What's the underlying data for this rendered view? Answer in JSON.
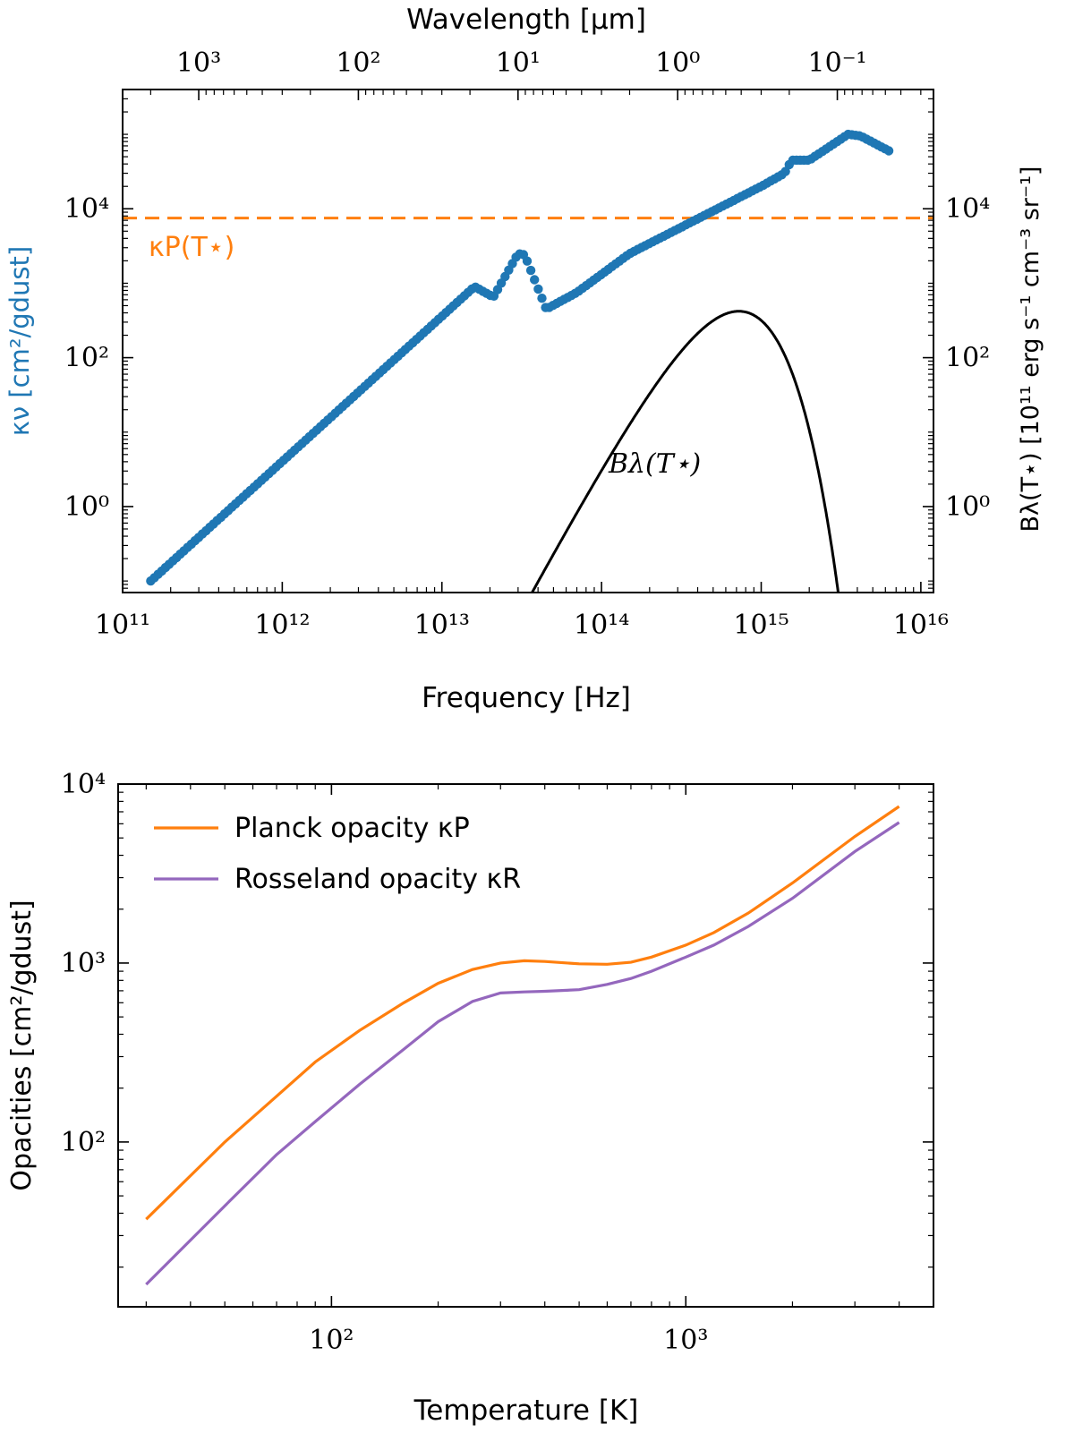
{
  "chart_data": [
    {
      "type": "scatter",
      "panel": "top",
      "title": "",
      "top_xlabel": "Wavelength [μm]",
      "xlabel": "Frequency [Hz]",
      "ylabel_left": "κν [cm²/gdust]",
      "ylabel_right": "Bλ(T⋆) [10¹¹ erg s⁻¹ cm⁻³ sr⁻¹]",
      "x_scale": "log",
      "y_scale": "log",
      "xlim": [
        100000000000.0,
        1.2e+16
      ],
      "ylim": [
        0.07,
        400000
      ],
      "grid": false,
      "x_ticks": [
        {
          "value": 100000000000.0,
          "label": "10¹¹"
        },
        {
          "value": 1000000000000.0,
          "label": "10¹²"
        },
        {
          "value": 10000000000000.0,
          "label": "10¹³"
        },
        {
          "value": 100000000000000.0,
          "label": "10¹⁴"
        },
        {
          "value": 1000000000000000.0,
          "label": "10¹⁵"
        },
        {
          "value": 1e+16,
          "label": "10¹⁶"
        }
      ],
      "y_ticks": [
        {
          "value": 1,
          "label": "10⁰"
        },
        {
          "value": 100,
          "label": "10²"
        },
        {
          "value": 10000,
          "label": "10⁴"
        }
      ],
      "top_ticks": [
        {
          "value": 1000,
          "label": "10³"
        },
        {
          "value": 100,
          "label": "10²"
        },
        {
          "value": 10,
          "label": "10¹"
        },
        {
          "value": 1,
          "label": "10⁰"
        },
        {
          "value": 0.1,
          "label": "10⁻¹"
        }
      ],
      "series": [
        {
          "name": "κν (dust opacity)",
          "color": "#1f77b4",
          "marker": "circle",
          "anchors": [
            [
              150000000000.0,
              0.1
            ],
            [
              16000000000000.0,
              900
            ],
            [
              21000000000000.0,
              650
            ],
            [
              30000000000000.0,
              2500
            ],
            [
              33000000000000.0,
              2400
            ],
            [
              45000000000000.0,
              450
            ],
            [
              70000000000000.0,
              750
            ],
            [
              150000000000000.0,
              2500
            ],
            [
              1000000000000000.0,
              20000
            ],
            [
              1400000000000000.0,
              30000
            ],
            [
              1550000000000000.0,
              45000
            ],
            [
              2000000000000000.0,
              45000
            ],
            [
              3500000000000000.0,
              100000
            ],
            [
              4200000000000000.0,
              95000
            ],
            [
              6300000000000000.0,
              60000
            ]
          ]
        },
        {
          "name": "Bλ(T⋆)",
          "color": "#000000",
          "style": "solid",
          "curve": {
            "type": "planck_lambda",
            "T_star": 7000,
            "peak_value": 420
          },
          "x_range": [
            100000000000.0,
            1.2e+16
          ]
        },
        {
          "name": "κP(T⋆)",
          "color": "#ff7f0e",
          "style": "dashed",
          "hline": 7500
        }
      ],
      "annotations": [
        {
          "text": "κP(T⋆)",
          "color": "#ff7f0e",
          "near": "left, just below the dashed line"
        },
        {
          "text": "Bλ(T⋆)",
          "color": "#000000",
          "near": "left of the Planck curve"
        }
      ]
    },
    {
      "type": "line",
      "panel": "bottom",
      "title": "",
      "xlabel": "Temperature [K]",
      "ylabel": "Opacities [cm²/gdust]",
      "x_scale": "log",
      "y_scale": "log",
      "xlim": [
        25,
        5000
      ],
      "ylim": [
        12,
        10000
      ],
      "grid": false,
      "legend_position": "top-left",
      "x_ticks": [
        {
          "value": 100,
          "label": "10²"
        },
        {
          "value": 1000,
          "label": "10³"
        }
      ],
      "y_ticks": [
        {
          "value": 100,
          "label": "10²"
        },
        {
          "value": 1000,
          "label": "10³"
        },
        {
          "value": 10000,
          "label": "10⁴"
        }
      ],
      "series": [
        {
          "name": "Planck opacity κP",
          "color": "#ff7f0e",
          "x": [
            30,
            50,
            70,
            90,
            120,
            160,
            200,
            250,
            300,
            350,
            400,
            500,
            600,
            700,
            800,
            1000,
            1200,
            1500,
            2000,
            3000,
            4000
          ],
          "y": [
            37,
            100,
            180,
            280,
            420,
            600,
            770,
            920,
            1000,
            1030,
            1020,
            990,
            985,
            1010,
            1080,
            1260,
            1480,
            1900,
            2800,
            5100,
            7500
          ]
        },
        {
          "name": "Rosseland opacity κR",
          "color": "#9467bd",
          "x": [
            30,
            50,
            70,
            90,
            120,
            160,
            200,
            250,
            300,
            350,
            400,
            500,
            600,
            700,
            800,
            1000,
            1200,
            1500,
            2000,
            3000,
            4000
          ],
          "y": [
            16,
            44,
            85,
            130,
            210,
            330,
            470,
            610,
            680,
            690,
            695,
            710,
            760,
            820,
            900,
            1080,
            1260,
            1600,
            2300,
            4200,
            6100
          ]
        }
      ]
    }
  ]
}
